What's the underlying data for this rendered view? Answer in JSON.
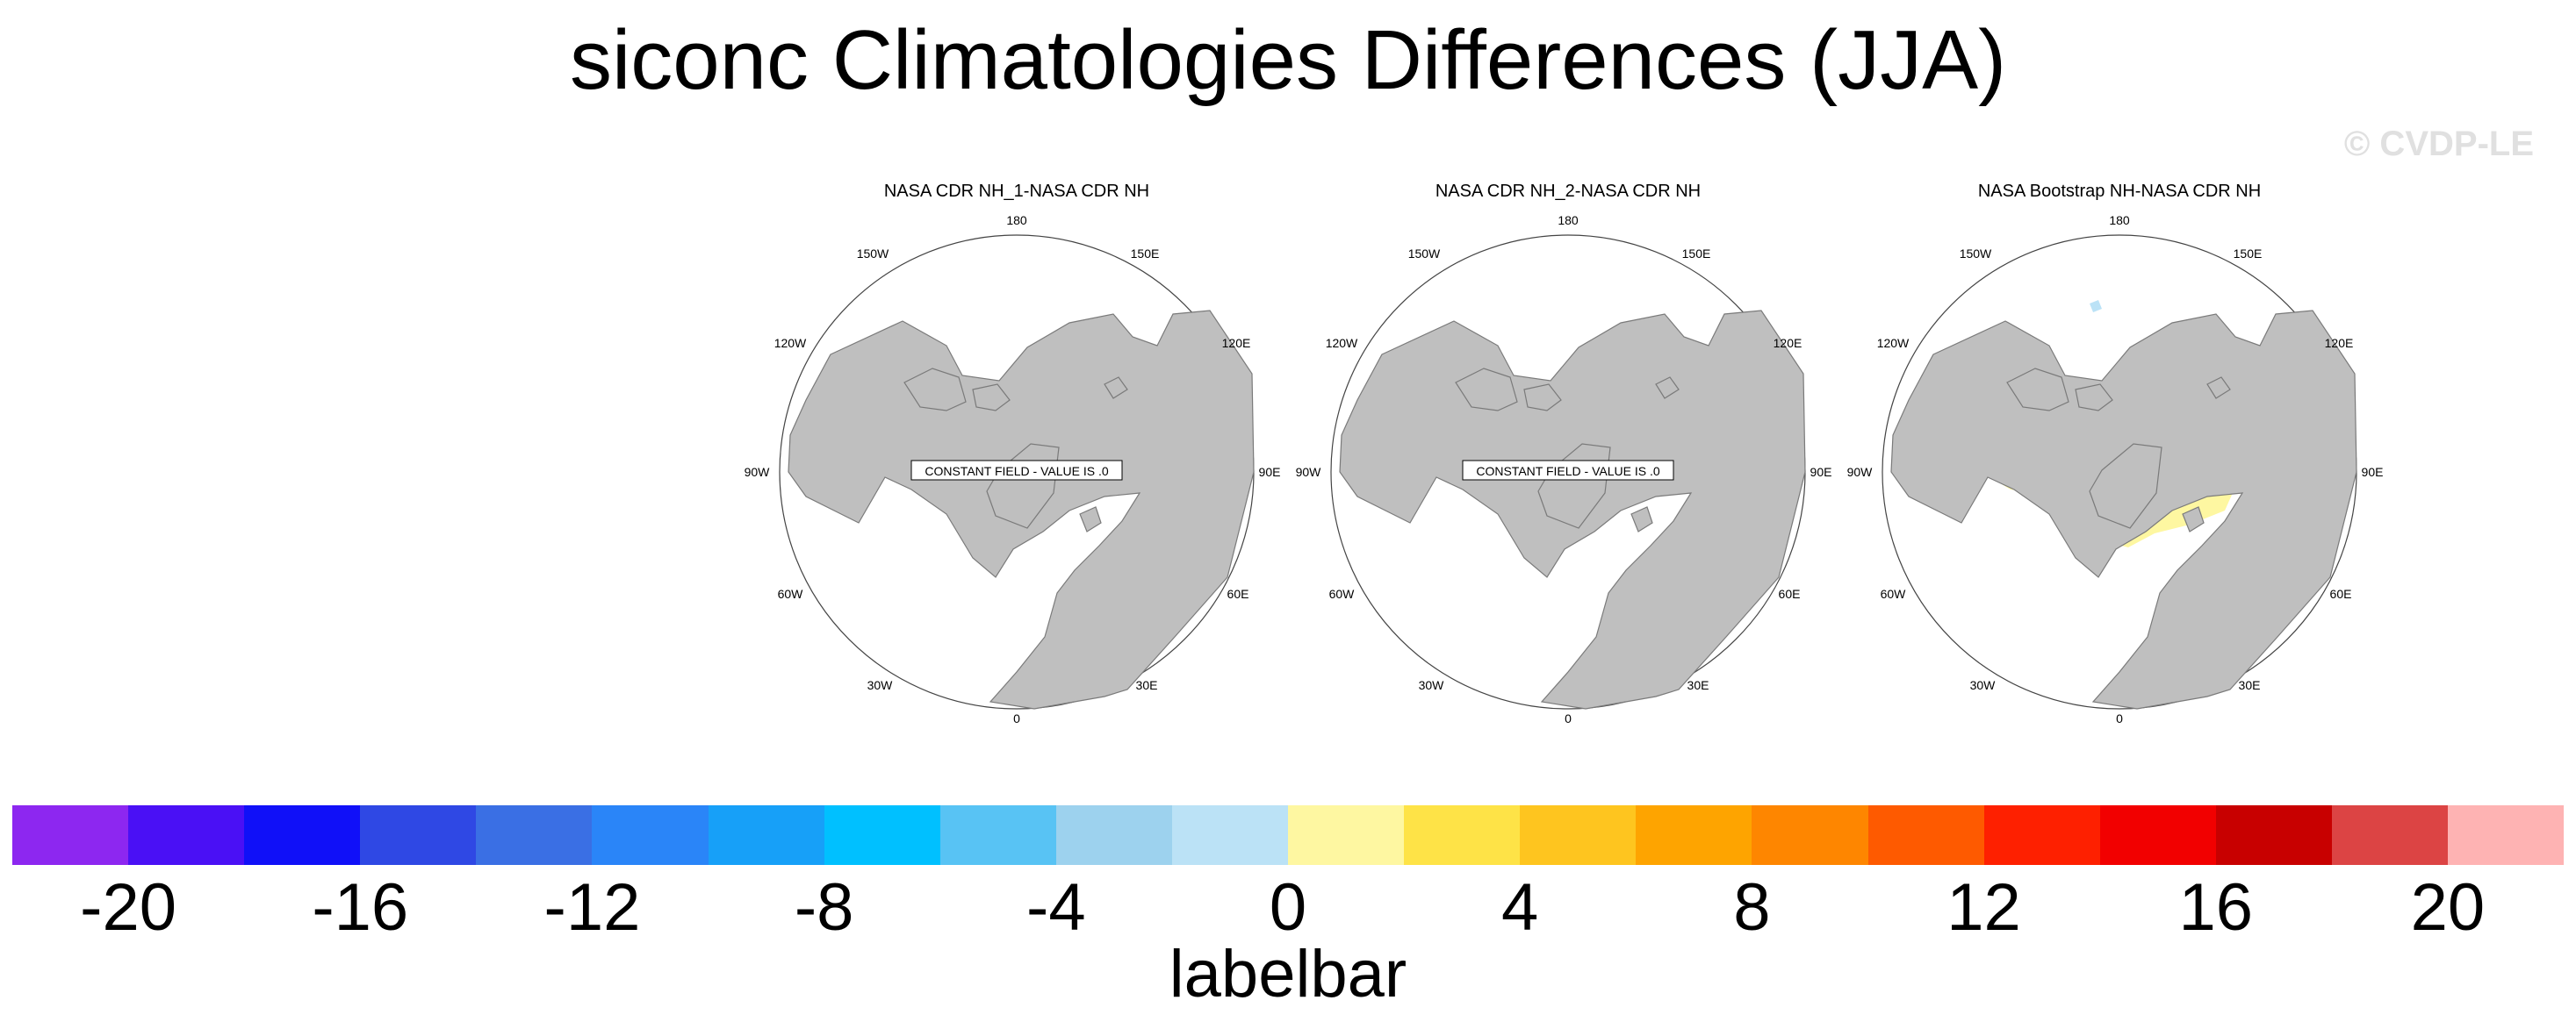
{
  "title": "siconc Climatologies Differences (JJA)",
  "copyright": "© CVDP-LE",
  "longitude_labels": [
    "180",
    "150E",
    "120E",
    "90E",
    "60E",
    "30E",
    "0",
    "30W",
    "60W",
    "90W",
    "120W",
    "150W"
  ],
  "panels": [
    {
      "title": "NASA CDR NH_1-NASA CDR NH",
      "note": "CONSTANT FIELD - VALUE IS .0"
    },
    {
      "title": "NASA CDR NH_2-NASA CDR NH",
      "note": "CONSTANT FIELD - VALUE IS .0"
    },
    {
      "title": "NASA Bootstrap NH-NASA CDR NH",
      "note": ""
    }
  ],
  "colors": {
    "land": "#bfbfbf",
    "coast": "#7a7a7a",
    "ocean": "#ffffff",
    "positive_small": "#fef7a1",
    "negative_small": "#bbe2f6"
  },
  "labelbar": {
    "title": "labelbar",
    "colors": [
      "#8d27f0",
      "#4a10f5",
      "#1010f8",
      "#2f48e4",
      "#3a6fe4",
      "#2a85f8",
      "#17a0f8",
      "#00c0ff",
      "#58c3f4",
      "#9dd2ee",
      "#bbe2f6",
      "#fef7a1",
      "#fee347",
      "#fec51f",
      "#fea400",
      "#fe8600",
      "#fe5a00",
      "#fe2000",
      "#f20000",
      "#c80000",
      "#dc4444",
      "#feb3b3"
    ],
    "ticks": [
      "-20",
      "-16",
      "-12",
      "-8",
      "-4",
      "0",
      "4",
      "8",
      "12",
      "16",
      "20"
    ]
  }
}
